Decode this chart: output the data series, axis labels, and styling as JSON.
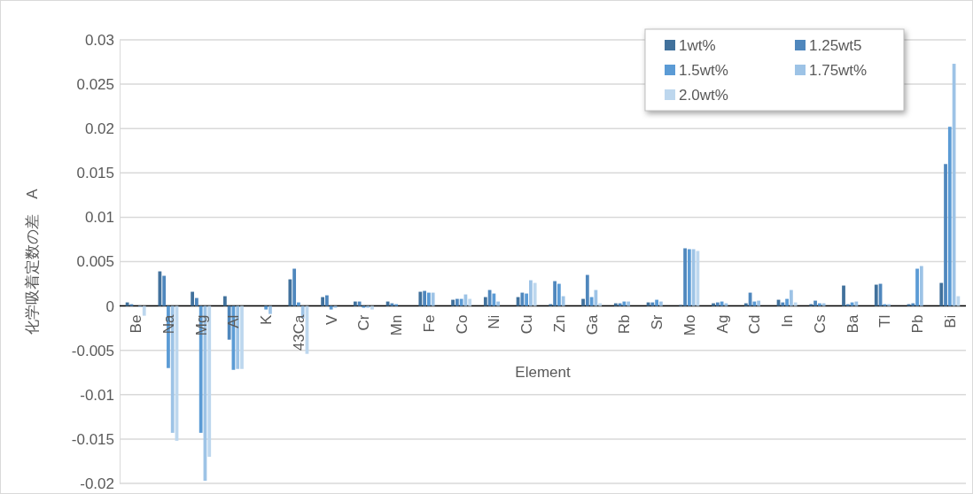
{
  "chart_data": {
    "type": "bar",
    "xlabel": "Element",
    "ylabel": "化学吸着定数の差　A",
    "categories": [
      "Be",
      "Na",
      "Mg",
      "Al",
      "K",
      "43Ca",
      "V",
      "Cr",
      "Mn",
      "Fe",
      "Co",
      "Ni",
      "Cu",
      "Zn",
      "Ga",
      "Rb",
      "Sr",
      "Mo",
      "Ag",
      "Cd",
      "In",
      "Cs",
      "Ba",
      "Tl",
      "Pb",
      "Bi"
    ],
    "series": [
      {
        "name": "1wt%",
        "color": "#41719c",
        "values": [
          0.0004,
          0.0039,
          0.0016,
          0.0011,
          0,
          0.003,
          0.001,
          0.0005,
          0.0005,
          0.0016,
          0.0007,
          0.001,
          0.001,
          0.0002,
          0.0008,
          0.0003,
          0.0004,
          0.0001,
          0.0003,
          0.0003,
          0.0007,
          0.0002,
          0.0023,
          0.0024,
          0.0002,
          0.0026
        ]
      },
      {
        "name": "1.25wt5",
        "color": "#4f87bd",
        "values": [
          0.0002,
          0.0034,
          0.0009,
          -0.0038,
          0,
          0.0042,
          0.0012,
          0.0005,
          0.0003,
          0.0017,
          0.0008,
          0.0018,
          0.0015,
          0.0028,
          0.0035,
          0.0003,
          0.0004,
          0.0065,
          0.0004,
          0.0015,
          0.0004,
          0.0006,
          0.0002,
          0.0025,
          0.0003,
          0.016
        ]
      },
      {
        "name": "1.5wt%",
        "color": "#5b9bd5",
        "values": [
          0,
          -0.007,
          -0.0143,
          -0.0072,
          -0.0004,
          0.0004,
          -0.0004,
          -0.0002,
          0.0002,
          0.0015,
          0.0008,
          0.0014,
          0.0014,
          0.0025,
          0.001,
          0.0005,
          0.0007,
          0.0064,
          0.0005,
          0.0005,
          0.0008,
          0.0003,
          0.0004,
          0.0002,
          0.0042,
          0.0202
        ]
      },
      {
        "name": "1.75wt%",
        "color": "#9dc3e6",
        "values": [
          -0.0001,
          -0.0143,
          -0.0197,
          -0.0071,
          -0.0009,
          -0.0014,
          -0.0002,
          -0.0002,
          0,
          0.0015,
          0.0013,
          0.0005,
          0.0029,
          0.0011,
          0.0018,
          0.0005,
          0.0005,
          0.0064,
          0.0003,
          0.0006,
          0.0018,
          0.0003,
          0.0005,
          0.0002,
          0.0045,
          0.0273
        ]
      },
      {
        "name": "2.0wt%",
        "color": "#bdd7ee",
        "values": [
          -0.0011,
          -0.0152,
          -0.017,
          -0.0071,
          0,
          -0.0054,
          0,
          -0.0004,
          0,
          0,
          0.0008,
          0,
          0.0026,
          0,
          0.0003,
          0,
          0,
          0.0062,
          0,
          0,
          0.0004,
          0,
          0,
          0,
          0,
          0.0011
        ]
      }
    ],
    "ylim": [
      -0.02,
      0.03
    ],
    "yticks": [
      -0.02,
      -0.015,
      -0.01,
      -0.005,
      0,
      0.005,
      0.01,
      0.015,
      0.02,
      0.025,
      0.03
    ],
    "grid": "y",
    "legend": "top right"
  }
}
